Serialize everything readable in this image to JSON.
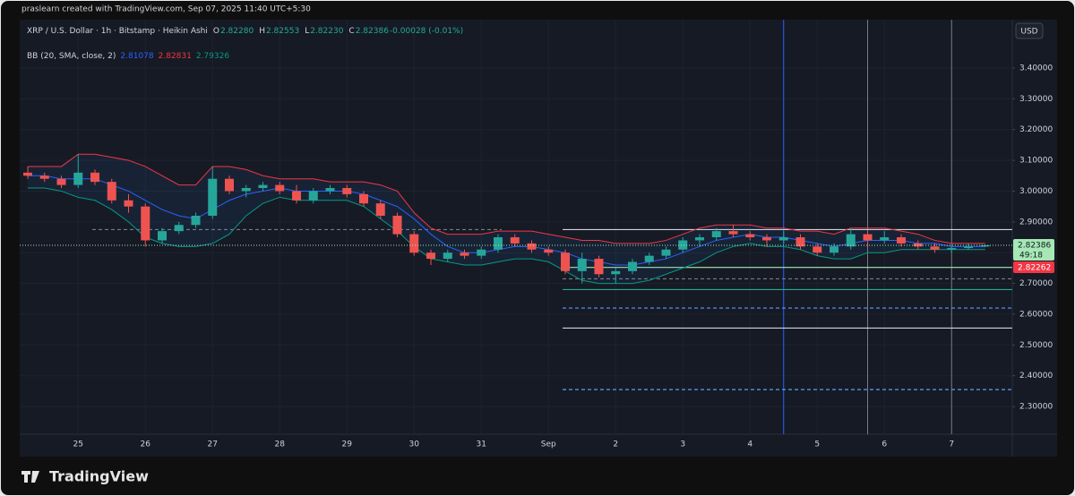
{
  "caption": "praslearn created with TradingView.com, Sep 07, 2025 11:40 UTC+5:30",
  "currency_button": "USD",
  "brand": "TradingView",
  "chart_data": {
    "type": "candlestick",
    "symbol": "XRP / U.S. Dollar · 1h · Bitstamp · Heikin Ashi",
    "ohlc_legend": [
      "O",
      "2.82280",
      "H",
      "2.82553",
      "L",
      "2.82230",
      "C",
      "2.82386",
      "-0.00028 (-0.01%)"
    ],
    "indicator": {
      "name": "BB (20, SMA, close, 2)",
      "values": [
        "2.81078",
        "2.82831",
        "2.79326"
      ],
      "colors": [
        "#2962ff",
        "#f23645",
        "#089981"
      ]
    },
    "categories": [
      null,
      null,
      null,
      "25",
      null,
      null,
      null,
      "26",
      null,
      null,
      null,
      "27",
      null,
      null,
      null,
      "28",
      null,
      null,
      null,
      "29",
      null,
      null,
      null,
      "30",
      null,
      null,
      null,
      "31",
      null,
      null,
      null,
      "Sep",
      null,
      null,
      null,
      "2",
      null,
      null,
      null,
      "3",
      null,
      null,
      null,
      "4",
      null,
      null,
      null,
      "5",
      null,
      null,
      null,
      "6",
      null,
      null,
      null,
      "7",
      null,
      null
    ],
    "open": [
      3.06,
      3.05,
      3.04,
      3.02,
      3.06,
      3.03,
      2.97,
      2.95,
      2.84,
      2.87,
      2.89,
      2.92,
      3.04,
      3.0,
      3.01,
      3.02,
      3.0,
      2.97,
      3.0,
      3.01,
      2.99,
      2.96,
      2.92,
      2.86,
      2.8,
      2.78,
      2.8,
      2.79,
      2.81,
      2.85,
      2.83,
      2.81,
      2.8,
      2.74,
      2.78,
      2.73,
      2.74,
      2.77,
      2.79,
      2.81,
      2.84,
      2.85,
      2.87,
      2.86,
      2.85,
      2.84,
      2.85,
      2.82,
      2.8,
      2.82,
      2.86,
      2.84,
      2.85,
      2.83,
      2.82,
      2.81,
      2.815,
      2.82
    ],
    "high": [
      3.08,
      3.06,
      3.05,
      3.12,
      3.07,
      3.04,
      2.99,
      2.96,
      2.88,
      2.9,
      2.93,
      3.08,
      3.05,
      3.02,
      3.03,
      3.03,
      3.02,
      3.01,
      3.02,
      3.02,
      3.0,
      2.97,
      2.93,
      2.87,
      2.81,
      2.81,
      2.81,
      2.82,
      2.86,
      2.86,
      2.84,
      2.82,
      2.81,
      2.8,
      2.79,
      2.75,
      2.78,
      2.8,
      2.82,
      2.85,
      2.86,
      2.88,
      2.89,
      2.87,
      2.86,
      2.87,
      2.86,
      2.83,
      2.83,
      2.88,
      2.87,
      2.87,
      2.86,
      2.84,
      2.83,
      2.82,
      2.83,
      2.826
    ],
    "low": [
      3.04,
      3.03,
      3.01,
      3.01,
      3.02,
      2.96,
      2.93,
      2.82,
      2.83,
      2.86,
      2.88,
      2.91,
      2.99,
      2.98,
      3.0,
      2.99,
      2.96,
      2.96,
      2.99,
      2.98,
      2.95,
      2.91,
      2.85,
      2.79,
      2.76,
      2.77,
      2.78,
      2.78,
      2.8,
      2.82,
      2.8,
      2.79,
      2.73,
      2.7,
      2.72,
      2.7,
      2.73,
      2.76,
      2.78,
      2.8,
      2.82,
      2.84,
      2.85,
      2.84,
      2.82,
      2.83,
      2.81,
      2.79,
      2.79,
      2.81,
      2.82,
      2.83,
      2.82,
      2.81,
      2.8,
      2.8,
      2.81,
      2.818
    ],
    "close": [
      3.05,
      3.04,
      3.02,
      3.06,
      3.03,
      2.97,
      2.95,
      2.84,
      2.87,
      2.89,
      2.92,
      3.04,
      3.0,
      3.01,
      3.02,
      3.0,
      2.97,
      3.0,
      3.01,
      2.99,
      2.96,
      2.92,
      2.86,
      2.8,
      2.78,
      2.8,
      2.79,
      2.81,
      2.85,
      2.83,
      2.81,
      2.8,
      2.74,
      2.78,
      2.73,
      2.74,
      2.77,
      2.79,
      2.81,
      2.84,
      2.85,
      2.87,
      2.86,
      2.85,
      2.84,
      2.85,
      2.82,
      2.8,
      2.82,
      2.86,
      2.84,
      2.85,
      2.83,
      2.82,
      2.81,
      2.815,
      2.82,
      2.824
    ],
    "up_color": "#26a69a",
    "down_color": "#ef5350",
    "bands": [
      {
        "color": "#f23645",
        "values": [
          3.08,
          3.08,
          3.08,
          3.12,
          3.12,
          3.11,
          3.1,
          3.08,
          3.05,
          3.02,
          3.02,
          3.08,
          3.08,
          3.07,
          3.05,
          3.04,
          3.04,
          3.04,
          3.03,
          3.03,
          3.03,
          3.02,
          3.0,
          2.93,
          2.88,
          2.86,
          2.86,
          2.86,
          2.87,
          2.87,
          2.87,
          2.86,
          2.85,
          2.84,
          2.84,
          2.83,
          2.83,
          2.83,
          2.84,
          2.86,
          2.88,
          2.89,
          2.89,
          2.89,
          2.88,
          2.88,
          2.87,
          2.87,
          2.86,
          2.88,
          2.88,
          2.88,
          2.87,
          2.86,
          2.84,
          2.83,
          2.83,
          2.83
        ]
      },
      {
        "color": "#2962ff",
        "values": [
          3.05,
          3.05,
          3.04,
          3.04,
          3.04,
          3.02,
          3.0,
          2.97,
          2.94,
          2.92,
          2.91,
          2.94,
          2.97,
          2.99,
          3.0,
          3.01,
          3.0,
          3.0,
          3.0,
          3.0,
          2.99,
          2.97,
          2.95,
          2.91,
          2.86,
          2.82,
          2.8,
          2.8,
          2.81,
          2.82,
          2.82,
          2.81,
          2.8,
          2.78,
          2.77,
          2.76,
          2.76,
          2.77,
          2.78,
          2.8,
          2.82,
          2.84,
          2.85,
          2.86,
          2.85,
          2.85,
          2.84,
          2.83,
          2.82,
          2.83,
          2.84,
          2.84,
          2.84,
          2.83,
          2.83,
          2.82,
          2.82,
          2.82
        ]
      },
      {
        "color": "#089981",
        "values": [
          3.01,
          3.01,
          3.0,
          2.98,
          2.97,
          2.94,
          2.9,
          2.85,
          2.83,
          2.82,
          2.82,
          2.83,
          2.86,
          2.92,
          2.96,
          2.98,
          2.97,
          2.97,
          2.97,
          2.97,
          2.95,
          2.91,
          2.87,
          2.82,
          2.78,
          2.77,
          2.76,
          2.76,
          2.77,
          2.78,
          2.78,
          2.77,
          2.74,
          2.71,
          2.7,
          2.7,
          2.7,
          2.71,
          2.73,
          2.75,
          2.77,
          2.8,
          2.82,
          2.83,
          2.82,
          2.82,
          2.81,
          2.79,
          2.78,
          2.78,
          2.8,
          2.8,
          2.81,
          2.81,
          2.81,
          2.81,
          2.81,
          2.81
        ]
      }
    ],
    "levels": [
      {
        "value": 2.875,
        "color": "#787b86",
        "dash": true
      },
      {
        "value": 2.875,
        "color": "#d1d4dc",
        "dash": false
      },
      {
        "value": 2.752,
        "color": "#a5e8b5",
        "dash": false
      },
      {
        "value": 2.715,
        "color": "#787b86",
        "dash": true
      },
      {
        "value": 2.68,
        "color": "#22ab94",
        "dash": false
      },
      {
        "value": 2.62,
        "color": "#5b9cf6",
        "dash": true
      },
      {
        "value": 2.555,
        "color": "#d1d4dc",
        "dash": false
      },
      {
        "value": 2.355,
        "color": "#5b9cf6",
        "dash": true
      }
    ],
    "last_price": {
      "value": 2.82386,
      "label": "2.82386"
    },
    "countdown": "49:18",
    "second_price_label": "2.82262",
    "ylim": [
      2.21,
      3.557
    ],
    "yticks": [
      {
        "value": 3.4,
        "label": "3.40000"
      },
      {
        "value": 3.3,
        "label": "3.30000"
      },
      {
        "value": 3.2,
        "label": "3.20000"
      },
      {
        "value": 3.1,
        "label": "3.10000"
      },
      {
        "value": 3.0,
        "label": "3.00000"
      },
      {
        "value": 2.9,
        "label": "2.90000"
      },
      {
        "value": 2.8,
        "label": "2.80000"
      },
      {
        "value": 2.7,
        "label": "2.70000"
      },
      {
        "value": 2.6,
        "label": "2.60000"
      },
      {
        "value": 2.5,
        "label": "2.50000"
      },
      {
        "value": 2.4,
        "label": "2.40000"
      },
      {
        "value": 2.3,
        "label": "2.30000"
      }
    ],
    "grid": true
  }
}
